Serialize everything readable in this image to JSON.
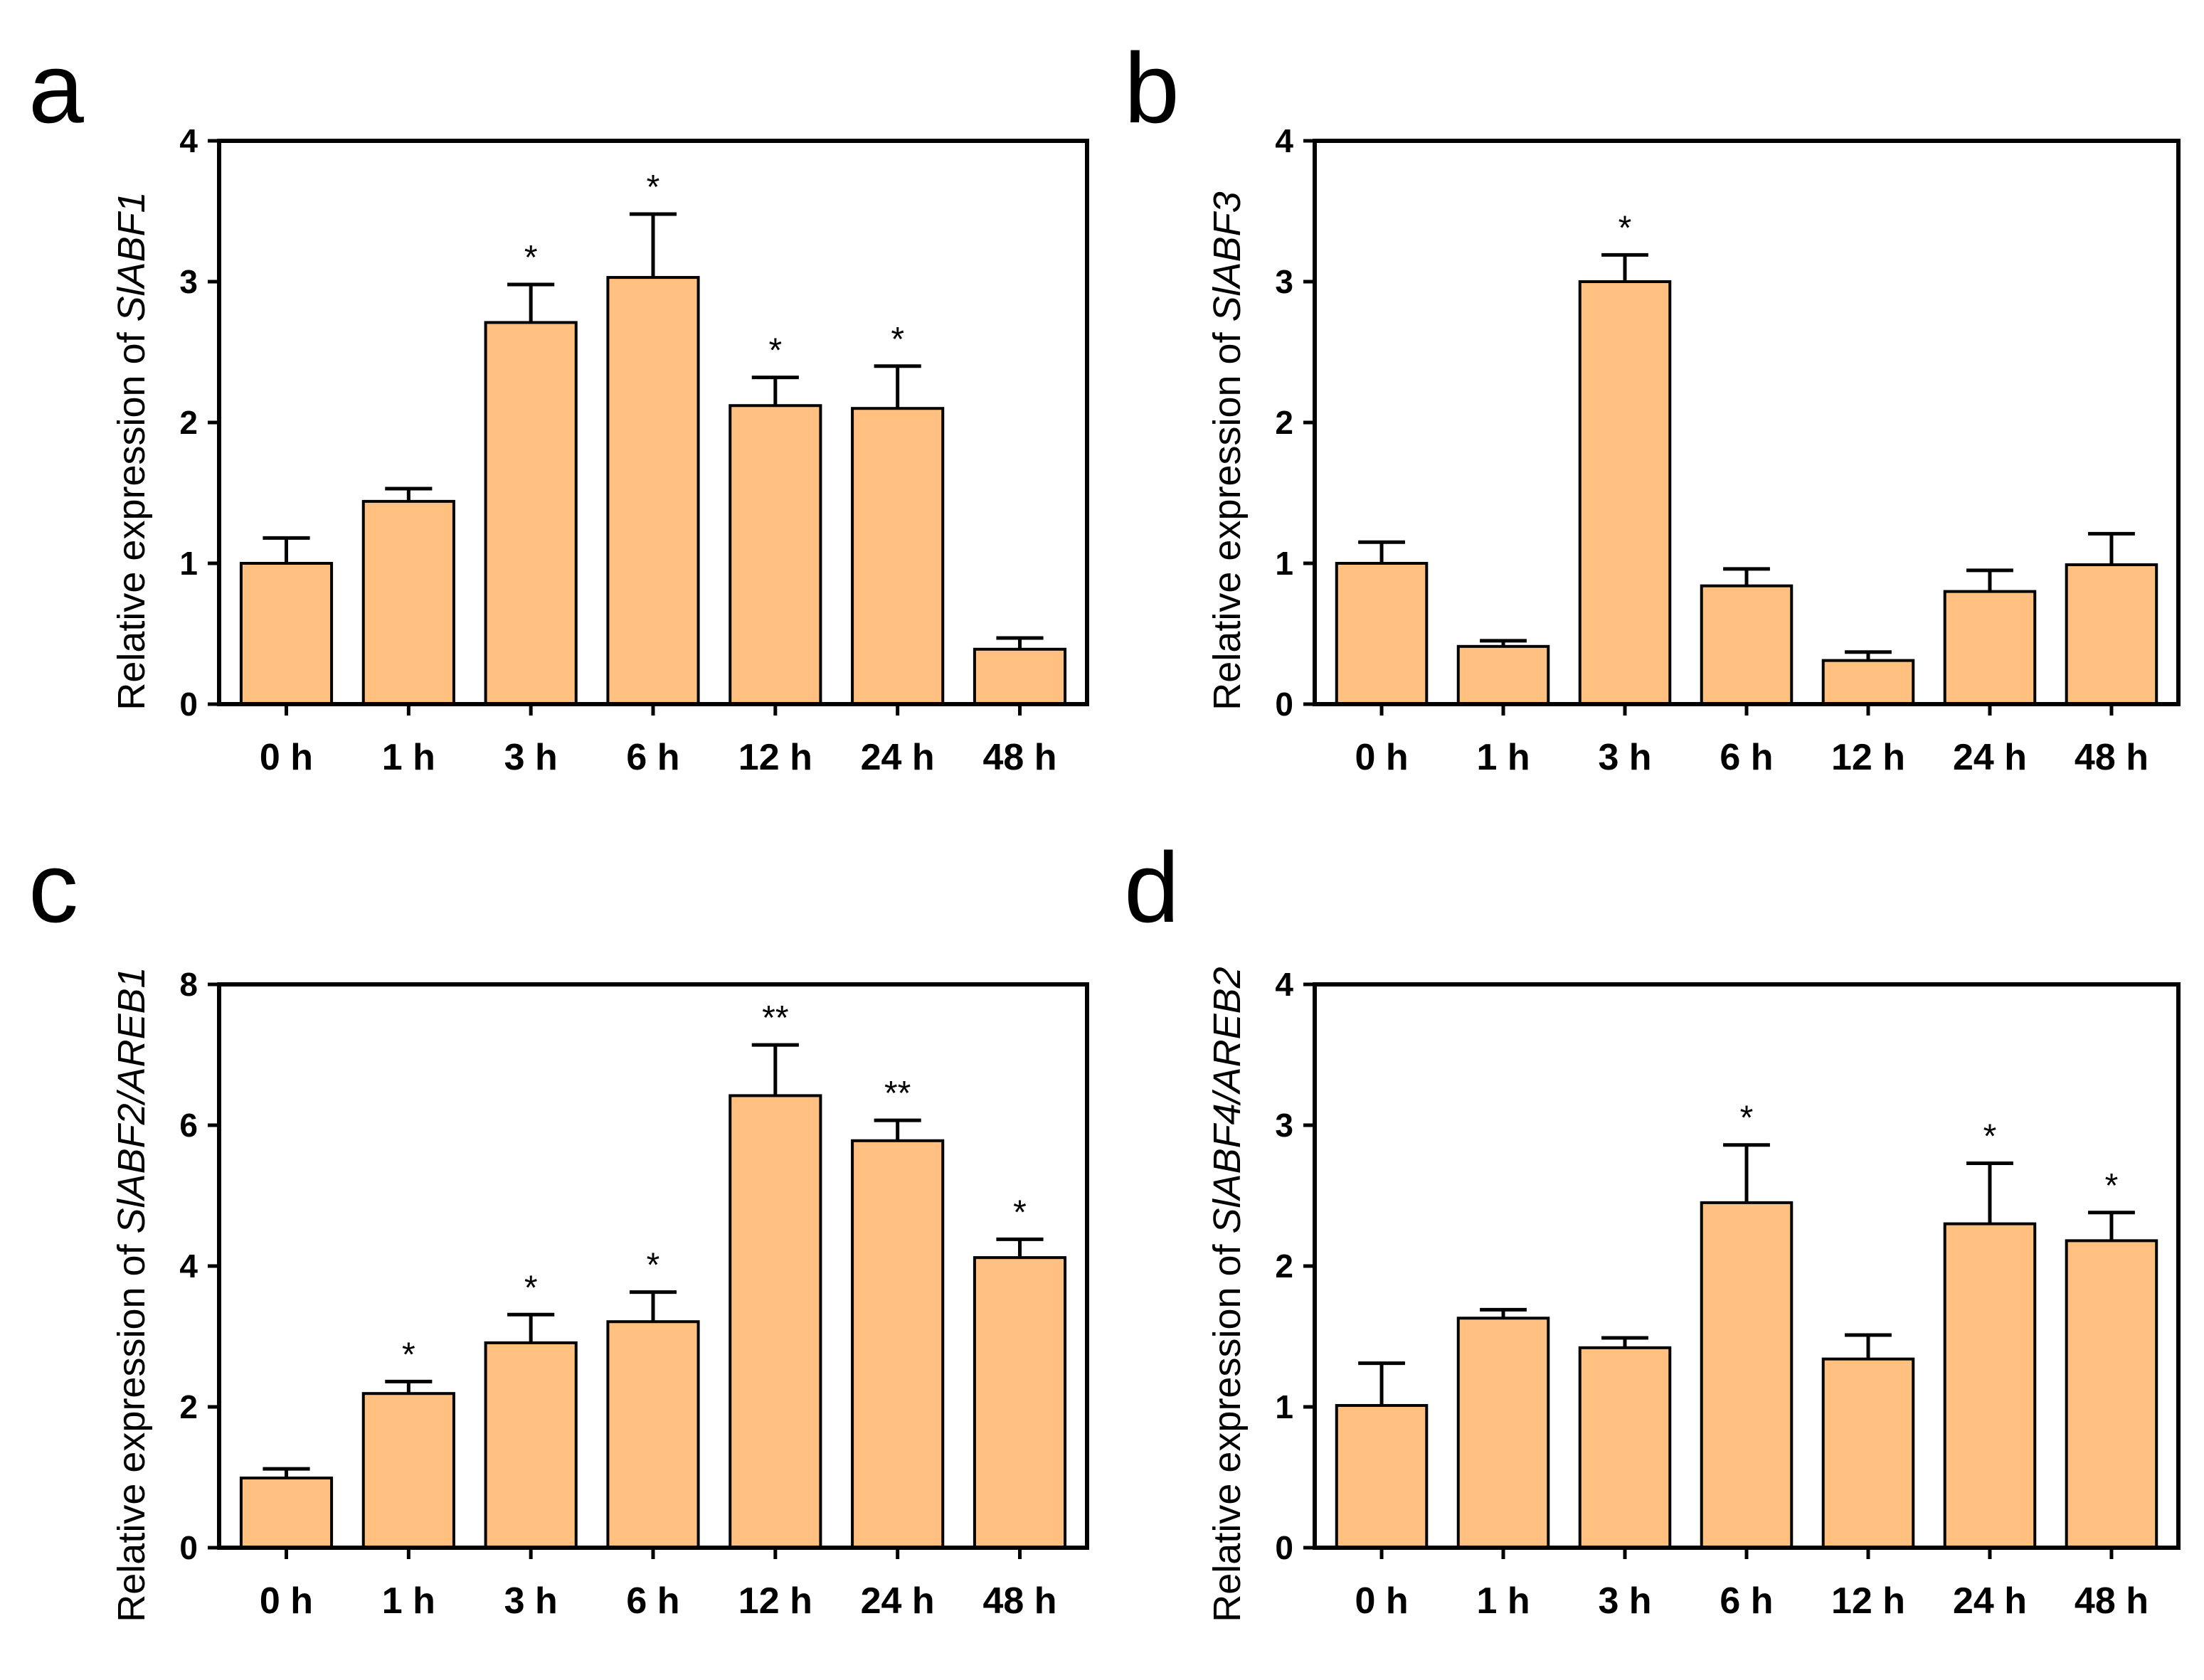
{
  "chart_data": [
    {
      "panel": "a",
      "type": "bar",
      "categories": [
        "0 h",
        "1 h",
        "3 h",
        "6 h",
        "12 h",
        "24 h",
        "48 h"
      ],
      "values": [
        1.0,
        1.44,
        2.71,
        3.03,
        2.12,
        2.1,
        0.39
      ],
      "errors": [
        0.18,
        0.09,
        0.27,
        0.45,
        0.2,
        0.3,
        0.08
      ],
      "significance": [
        "",
        "",
        "*",
        "*",
        "*",
        "*",
        ""
      ],
      "ylabel_prefix": "Relative expression of ",
      "ylabel_gene": "SlABF1",
      "ylim": [
        0,
        4
      ],
      "yticks": [
        0,
        1,
        2,
        3,
        4
      ],
      "bar_color": "#FFC080"
    },
    {
      "panel": "b",
      "type": "bar",
      "categories": [
        "0 h",
        "1 h",
        "3 h",
        "6 h",
        "12 h",
        "24 h",
        "48 h"
      ],
      "values": [
        1.0,
        0.41,
        3.0,
        0.84,
        0.31,
        0.8,
        0.99
      ],
      "errors": [
        0.15,
        0.04,
        0.19,
        0.12,
        0.06,
        0.15,
        0.22
      ],
      "significance": [
        "",
        "",
        "*",
        "",
        "",
        "",
        ""
      ],
      "ylabel_prefix": "Relative expression of ",
      "ylabel_gene": "SlABF3",
      "ylim": [
        0,
        4
      ],
      "yticks": [
        0,
        1,
        2,
        3,
        4
      ],
      "bar_color": "#FFC080"
    },
    {
      "panel": "c",
      "type": "bar",
      "categories": [
        "0 h",
        "1 h",
        "3 h",
        "6 h",
        "12 h",
        "24 h",
        "48 h"
      ],
      "values": [
        0.99,
        2.19,
        2.91,
        3.21,
        6.42,
        5.78,
        4.12
      ],
      "errors": [
        0.13,
        0.17,
        0.4,
        0.42,
        0.72,
        0.29,
        0.26
      ],
      "significance": [
        "",
        "*",
        "*",
        "*",
        "**",
        "**",
        "*"
      ],
      "ylabel_prefix": "Relative expression of ",
      "ylabel_gene": "SlABF2/AREB1",
      "ylim": [
        0,
        8
      ],
      "yticks": [
        0,
        2,
        4,
        6,
        8
      ],
      "bar_color": "#FFC080"
    },
    {
      "panel": "d",
      "type": "bar",
      "categories": [
        "0 h",
        "1 h",
        "3 h",
        "6 h",
        "12 h",
        "24 h",
        "48 h"
      ],
      "values": [
        1.01,
        1.63,
        1.42,
        2.45,
        1.34,
        2.3,
        2.18
      ],
      "errors": [
        0.3,
        0.06,
        0.07,
        0.41,
        0.17,
        0.43,
        0.2
      ],
      "significance": [
        "",
        "",
        "",
        "*",
        "",
        "*",
        "*"
      ],
      "ylabel_prefix": "Relative expression of ",
      "ylabel_gene": "SlABF4/AREB2",
      "ylim": [
        0,
        4
      ],
      "yticks": [
        0,
        1,
        2,
        3,
        4
      ],
      "bar_color": "#FFC080"
    }
  ]
}
